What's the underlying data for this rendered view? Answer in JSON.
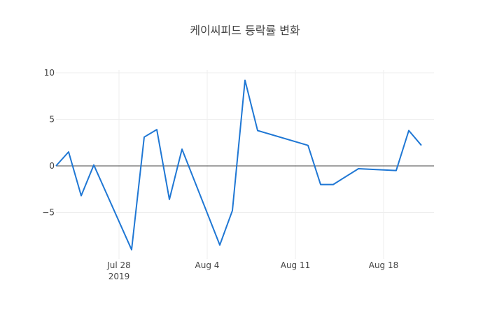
{
  "chart_data": {
    "type": "line",
    "title": "케이씨피드 등락률 변화",
    "xlabel": "",
    "ylabel": "",
    "x_range": [
      "2019-07-23",
      "2019-08-22"
    ],
    "ylim": [
      -10,
      10.3
    ],
    "grid": true,
    "zero_line": true,
    "line_color": "#1f77d4",
    "x_ticks": [
      {
        "date": "2019-07-28",
        "label": "Jul 28",
        "sublabel": "2019"
      },
      {
        "date": "2019-08-04",
        "label": "Aug 4",
        "sublabel": ""
      },
      {
        "date": "2019-08-11",
        "label": "Aug 11",
        "sublabel": ""
      },
      {
        "date": "2019-08-18",
        "label": "Aug 18",
        "sublabel": ""
      }
    ],
    "y_ticks": [
      {
        "value": 10,
        "label": "10"
      },
      {
        "value": 5,
        "label": "5"
      },
      {
        "value": 0,
        "label": "0"
      },
      {
        "value": -5,
        "label": "−5"
      }
    ],
    "series": [
      {
        "points": [
          {
            "x": "2019-07-23",
            "y": 0.0
          },
          {
            "x": "2019-07-24",
            "y": 1.5
          },
          {
            "x": "2019-07-25",
            "y": -3.2
          },
          {
            "x": "2019-07-26",
            "y": 0.1
          },
          {
            "x": "2019-07-29",
            "y": -9.0
          },
          {
            "x": "2019-07-30",
            "y": 3.1
          },
          {
            "x": "2019-07-31",
            "y": 3.9
          },
          {
            "x": "2019-08-01",
            "y": -3.6
          },
          {
            "x": "2019-08-02",
            "y": 1.8
          },
          {
            "x": "2019-08-05",
            "y": -8.5
          },
          {
            "x": "2019-08-06",
            "y": -4.8
          },
          {
            "x": "2019-08-07",
            "y": 9.2
          },
          {
            "x": "2019-08-08",
            "y": 3.8
          },
          {
            "x": "2019-08-12",
            "y": 2.2
          },
          {
            "x": "2019-08-13",
            "y": -2.0
          },
          {
            "x": "2019-08-14",
            "y": -2.0
          },
          {
            "x": "2019-08-16",
            "y": -0.3
          },
          {
            "x": "2019-08-19",
            "y": -0.5
          },
          {
            "x": "2019-08-20",
            "y": 3.8
          },
          {
            "x": "2019-08-21",
            "y": 2.2
          }
        ]
      }
    ]
  }
}
